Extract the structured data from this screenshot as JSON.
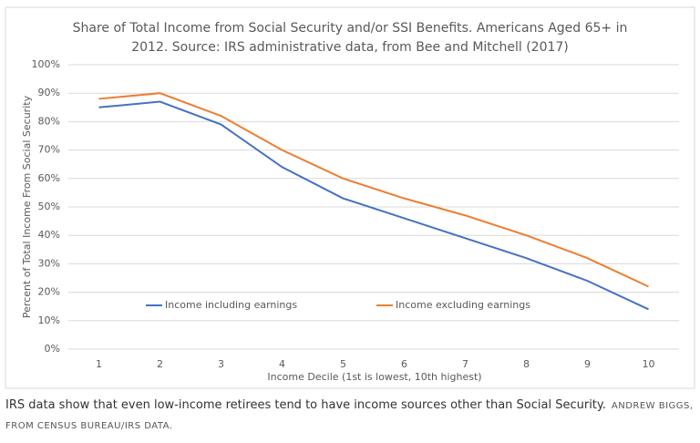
{
  "chart_data": {
    "type": "line",
    "title": "Share of Total Income from Social Security and/or SSI Benefits. Americans Aged 65+ in",
    "subtitle": "2012. Source: IRS administrative data, from Bee and Mitchell (2017)",
    "x_label": "Income Decile (1st is lowest, 10th highest)",
    "y_label": "Percent of Total Income From Social Security",
    "categories": [
      "1",
      "2",
      "3",
      "4",
      "5",
      "6",
      "7",
      "8",
      "9",
      "10"
    ],
    "series": [
      {
        "name": "Income including earnings",
        "color": "#4472c4",
        "values": [
          85,
          87,
          79,
          64,
          53,
          46,
          39,
          32,
          24,
          14
        ]
      },
      {
        "name": "Income excluding earnings",
        "color": "#ed7d31",
        "values": [
          88,
          90,
          82,
          70,
          60,
          53,
          47,
          40,
          32,
          22
        ]
      }
    ],
    "ylim": [
      0,
      100
    ],
    "yticks": [
      {
        "value": 0,
        "label": "0%"
      },
      {
        "value": 10,
        "label": "10%"
      },
      {
        "value": 20,
        "label": "20%"
      },
      {
        "value": 30,
        "label": "30%"
      },
      {
        "value": 40,
        "label": "40%"
      },
      {
        "value": 50,
        "label": "50%"
      },
      {
        "value": 60,
        "label": "60%"
      },
      {
        "value": 70,
        "label": "70%"
      },
      {
        "value": 80,
        "label": "80%"
      },
      {
        "value": 90,
        "label": "90%"
      },
      {
        "value": 100,
        "label": "100%"
      }
    ],
    "grid": true
  },
  "caption": "IRS data show that even low-income retirees tend to have income sources other than Social Security.",
  "credit": "ANDREW BIGGS, FROM CENSUS BUREAU/IRS DATA."
}
